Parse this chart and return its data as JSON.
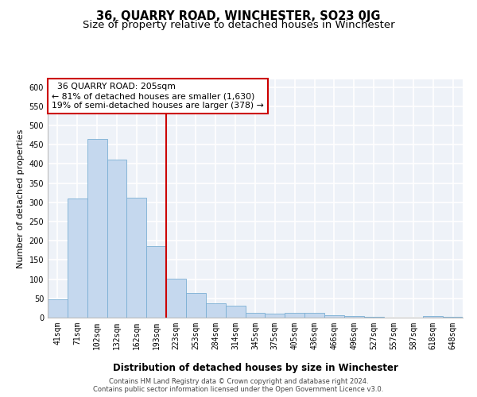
{
  "title": "36, QUARRY ROAD, WINCHESTER, SO23 0JG",
  "subtitle": "Size of property relative to detached houses in Winchester",
  "xlabel": "Distribution of detached houses by size in Winchester",
  "ylabel": "Number of detached properties",
  "categories": [
    "41sqm",
    "71sqm",
    "102sqm",
    "132sqm",
    "162sqm",
    "193sqm",
    "223sqm",
    "253sqm",
    "284sqm",
    "314sqm",
    "345sqm",
    "375sqm",
    "405sqm",
    "436sqm",
    "466sqm",
    "496sqm",
    "527sqm",
    "557sqm",
    "587sqm",
    "618sqm",
    "648sqm"
  ],
  "values": [
    47,
    310,
    465,
    412,
    312,
    185,
    102,
    65,
    38,
    30,
    13,
    10,
    13,
    12,
    6,
    4,
    2,
    1,
    0,
    4,
    3
  ],
  "bar_color": "#c5d8ee",
  "bar_edge_color": "#7aafd4",
  "bar_edge_width": 0.6,
  "vline_x": 5.5,
  "vline_color": "#cc0000",
  "annotation_text_line1": "  36 QUARRY ROAD: 205sqm",
  "annotation_text_line2": "← 81% of detached houses are smaller (1,630)",
  "annotation_text_line3": "19% of semi-detached houses are larger (378) →",
  "annotation_box_color": "#ffffff",
  "annotation_box_edge": "#cc0000",
  "ylim": [
    0,
    620
  ],
  "yticks": [
    0,
    50,
    100,
    150,
    200,
    250,
    300,
    350,
    400,
    450,
    500,
    550,
    600
  ],
  "background_color": "#eef2f8",
  "grid_color": "#ffffff",
  "title_fontsize": 10.5,
  "subtitle_fontsize": 9.5,
  "xlabel_fontsize": 8.5,
  "ylabel_fontsize": 8,
  "tick_fontsize": 7,
  "annotation_fontsize": 7.8,
  "footer_line1": "Contains HM Land Registry data © Crown copyright and database right 2024.",
  "footer_line2": "Contains public sector information licensed under the Open Government Licence v3.0."
}
